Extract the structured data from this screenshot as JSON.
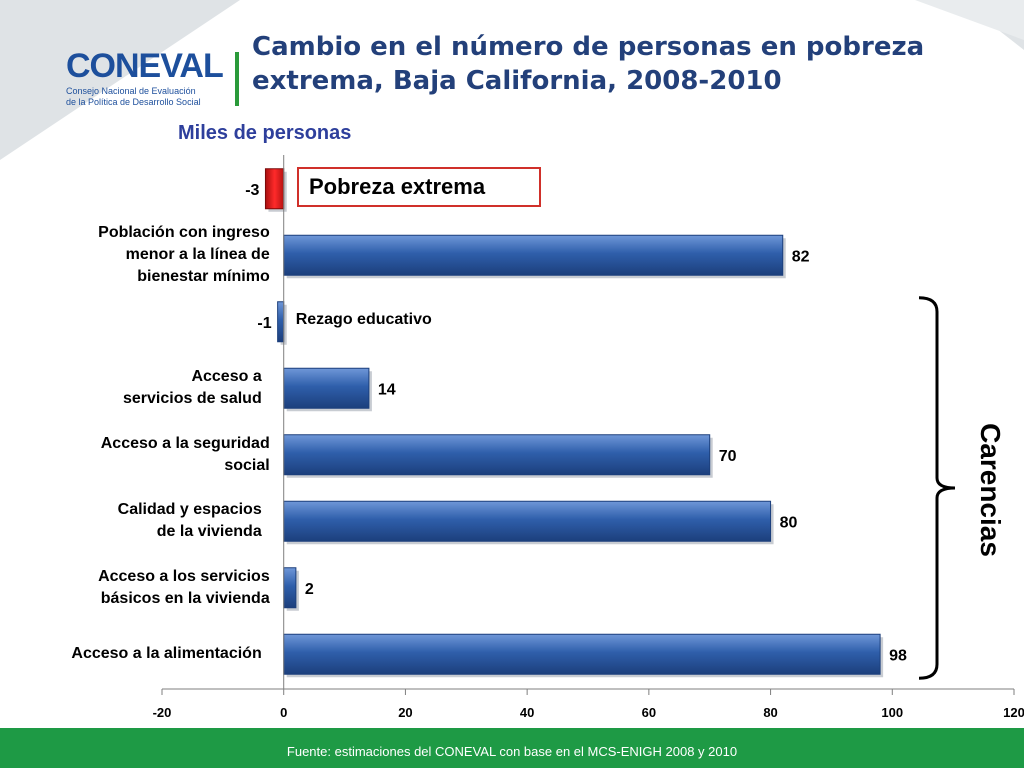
{
  "header": {
    "title": "Cambio en el número de personas en pobreza extrema, Baja California, 2008-2010",
    "logo_name": "CONEVAL",
    "logo_line1": "Consejo Nacional de Evaluación",
    "logo_line2": "de la Política de Desarrollo Social"
  },
  "chart_data": {
    "type": "bar",
    "orientation": "horizontal",
    "units_label": "Miles de personas",
    "categories": [
      "",
      "Población con ingreso\nmenor a la línea de\nbienestar mínimo",
      "Rezago educativo",
      "Acceso a\nservicios de salud",
      "Acceso a  la seguridad\nsocial",
      "Calidad y espacios\nde la vivienda",
      "Acceso a los servicios\nbásicos en la vivienda",
      "Acceso a la alimentación"
    ],
    "values": [
      -3,
      82,
      -1,
      14,
      70,
      80,
      2,
      98
    ],
    "data_labels": [
      "-3",
      "82",
      "-1",
      "14",
      "70",
      "80",
      "2",
      "98"
    ],
    "highlight_category_index": 0,
    "bar_colors": {
      "default": "#2f5fab",
      "highlight": "#e01b1b"
    },
    "xlim": [
      -20,
      120
    ],
    "xticks": [
      -20,
      0,
      20,
      40,
      60,
      80,
      100,
      120
    ],
    "xtick_labels": [
      "-20",
      "0",
      "20",
      "40",
      "60",
      "80",
      "100",
      "120"
    ],
    "legend": {
      "label": "Pobreza extrema",
      "border_color": "#d0302a"
    },
    "bracket": {
      "label": "Carencias",
      "from_category_index": 2,
      "to_category_index": 7
    },
    "grid": false
  },
  "footer": {
    "source": "Fuente: estimaciones del CONEVAL con base en el MCS-ENIGH 2008 y 2010",
    "color": "#1e9a45"
  }
}
